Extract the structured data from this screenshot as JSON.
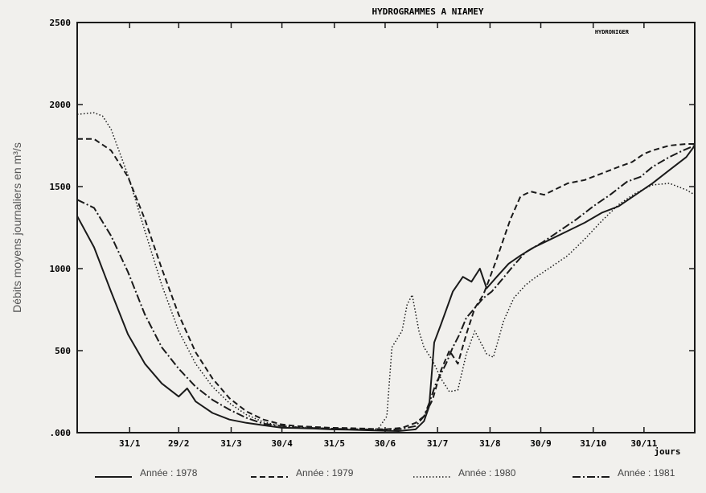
{
  "chart_data": {
    "type": "line",
    "title": "HYDROGRAMMES A NIAMEY",
    "watermark": "HYDRONIGER",
    "ylabel": "Débits moyens journaliers en m³/s",
    "xunit": "jours",
    "ylim": [
      0,
      2500
    ],
    "xlim": [
      0,
      365
    ],
    "y_ticks": [
      {
        "value": 2500,
        "label": "2500"
      },
      {
        "value": 2000,
        "label": "2000"
      },
      {
        "value": 1500,
        "label": "1500"
      },
      {
        "value": 1000,
        "label": "1000"
      },
      {
        "value": 500,
        "label": "500"
      },
      {
        "value": 0,
        "label": ".000"
      }
    ],
    "x_ticks": [
      {
        "day": 31,
        "label": "31/1"
      },
      {
        "day": 60,
        "label": "29/2"
      },
      {
        "day": 91,
        "label": "31/3"
      },
      {
        "day": 121,
        "label": "30/4"
      },
      {
        "day": 152,
        "label": "31/5"
      },
      {
        "day": 182,
        "label": "30/6"
      },
      {
        "day": 213,
        "label": "31/7"
      },
      {
        "day": 244,
        "label": "31/8"
      },
      {
        "day": 274,
        "label": "30/9"
      },
      {
        "day": 305,
        "label": "31/10"
      },
      {
        "day": 335,
        "label": "30/11"
      }
    ],
    "grid": false,
    "legend_position": "bottom",
    "series": [
      {
        "name": "Année : 1978",
        "style": "solid",
        "color": "#1a1a1a",
        "points": [
          [
            0,
            1320
          ],
          [
            10,
            1130
          ],
          [
            20,
            860
          ],
          [
            30,
            600
          ],
          [
            40,
            420
          ],
          [
            50,
            300
          ],
          [
            60,
            220
          ],
          [
            65,
            270
          ],
          [
            70,
            190
          ],
          [
            80,
            120
          ],
          [
            90,
            80
          ],
          [
            100,
            60
          ],
          [
            110,
            45
          ],
          [
            121,
            30
          ],
          [
            130,
            28
          ],
          [
            140,
            25
          ],
          [
            150,
            20
          ],
          [
            160,
            18
          ],
          [
            170,
            15
          ],
          [
            182,
            12
          ],
          [
            190,
            10
          ],
          [
            200,
            20
          ],
          [
            205,
            70
          ],
          [
            208,
            160
          ],
          [
            211,
            550
          ],
          [
            215,
            660
          ],
          [
            222,
            860
          ],
          [
            228,
            950
          ],
          [
            233,
            920
          ],
          [
            238,
            1000
          ],
          [
            242,
            880
          ],
          [
            248,
            950
          ],
          [
            255,
            1030
          ],
          [
            262,
            1080
          ],
          [
            270,
            1130
          ],
          [
            280,
            1180
          ],
          [
            290,
            1230
          ],
          [
            300,
            1280
          ],
          [
            310,
            1340
          ],
          [
            320,
            1380
          ],
          [
            330,
            1450
          ],
          [
            340,
            1520
          ],
          [
            350,
            1600
          ],
          [
            360,
            1680
          ],
          [
            365,
            1750
          ]
        ]
      },
      {
        "name": "Année : 1979",
        "style": "dashed",
        "color": "#1a1a1a",
        "points": [
          [
            0,
            1790
          ],
          [
            10,
            1790
          ],
          [
            20,
            1720
          ],
          [
            30,
            1560
          ],
          [
            40,
            1300
          ],
          [
            50,
            1000
          ],
          [
            60,
            720
          ],
          [
            70,
            490
          ],
          [
            80,
            330
          ],
          [
            90,
            210
          ],
          [
            100,
            130
          ],
          [
            110,
            80
          ],
          [
            121,
            50
          ],
          [
            130,
            40
          ],
          [
            140,
            35
          ],
          [
            150,
            30
          ],
          [
            160,
            28
          ],
          [
            170,
            25
          ],
          [
            182,
            20
          ],
          [
            192,
            30
          ],
          [
            200,
            60
          ],
          [
            205,
            100
          ],
          [
            210,
            200
          ],
          [
            215,
            380
          ],
          [
            220,
            500
          ],
          [
            225,
            420
          ],
          [
            230,
            600
          ],
          [
            235,
            760
          ],
          [
            240,
            840
          ],
          [
            243,
            920
          ],
          [
            248,
            1060
          ],
          [
            252,
            1180
          ],
          [
            256,
            1300
          ],
          [
            262,
            1440
          ],
          [
            268,
            1470
          ],
          [
            276,
            1450
          ],
          [
            284,
            1490
          ],
          [
            290,
            1520
          ],
          [
            300,
            1540
          ],
          [
            310,
            1580
          ],
          [
            320,
            1620
          ],
          [
            328,
            1650
          ],
          [
            335,
            1700
          ],
          [
            340,
            1720
          ],
          [
            350,
            1750
          ],
          [
            360,
            1760
          ],
          [
            365,
            1760
          ]
        ]
      },
      {
        "name": "Année : 1980",
        "style": "dotted",
        "color": "#1a1a1a",
        "points": [
          [
            0,
            1940
          ],
          [
            10,
            1950
          ],
          [
            15,
            1930
          ],
          [
            20,
            1850
          ],
          [
            30,
            1570
          ],
          [
            40,
            1230
          ],
          [
            50,
            900
          ],
          [
            60,
            620
          ],
          [
            70,
            420
          ],
          [
            80,
            280
          ],
          [
            90,
            180
          ],
          [
            100,
            110
          ],
          [
            110,
            65
          ],
          [
            121,
            40
          ],
          [
            130,
            35
          ],
          [
            140,
            30
          ],
          [
            150,
            25
          ],
          [
            160,
            22
          ],
          [
            170,
            20
          ],
          [
            178,
            25
          ],
          [
            183,
            100
          ],
          [
            186,
            520
          ],
          [
            192,
            620
          ],
          [
            195,
            780
          ],
          [
            198,
            840
          ],
          [
            202,
            620
          ],
          [
            205,
            520
          ],
          [
            210,
            440
          ],
          [
            215,
            330
          ],
          [
            220,
            250
          ],
          [
            225,
            260
          ],
          [
            230,
            480
          ],
          [
            235,
            620
          ],
          [
            238,
            560
          ],
          [
            242,
            480
          ],
          [
            246,
            460
          ],
          [
            252,
            680
          ],
          [
            258,
            820
          ],
          [
            265,
            900
          ],
          [
            270,
            940
          ],
          [
            280,
            1010
          ],
          [
            290,
            1080
          ],
          [
            300,
            1180
          ],
          [
            310,
            1290
          ],
          [
            320,
            1390
          ],
          [
            330,
            1460
          ],
          [
            340,
            1510
          ],
          [
            350,
            1520
          ],
          [
            360,
            1480
          ],
          [
            365,
            1450
          ]
        ]
      },
      {
        "name": "Année : 1981",
        "style": "dashdot",
        "color": "#1a1a1a",
        "points": [
          [
            0,
            1420
          ],
          [
            10,
            1370
          ],
          [
            20,
            1200
          ],
          [
            30,
            980
          ],
          [
            40,
            720
          ],
          [
            50,
            520
          ],
          [
            60,
            390
          ],
          [
            70,
            280
          ],
          [
            80,
            200
          ],
          [
            90,
            140
          ],
          [
            100,
            90
          ],
          [
            110,
            55
          ],
          [
            121,
            40
          ],
          [
            130,
            32
          ],
          [
            140,
            28
          ],
          [
            150,
            25
          ],
          [
            160,
            22
          ],
          [
            170,
            20
          ],
          [
            182,
            18
          ],
          [
            190,
            20
          ],
          [
            200,
            40
          ],
          [
            205,
            100
          ],
          [
            208,
            180
          ],
          [
            212,
            300
          ],
          [
            218,
            420
          ],
          [
            222,
            520
          ],
          [
            226,
            600
          ],
          [
            230,
            700
          ],
          [
            235,
            760
          ],
          [
            240,
            820
          ],
          [
            245,
            860
          ],
          [
            250,
            920
          ],
          [
            258,
            1020
          ],
          [
            265,
            1100
          ],
          [
            275,
            1160
          ],
          [
            285,
            1230
          ],
          [
            295,
            1300
          ],
          [
            305,
            1380
          ],
          [
            315,
            1450
          ],
          [
            325,
            1530
          ],
          [
            333,
            1560
          ],
          [
            340,
            1620
          ],
          [
            350,
            1680
          ],
          [
            358,
            1720
          ],
          [
            365,
            1750
          ]
        ]
      }
    ]
  }
}
